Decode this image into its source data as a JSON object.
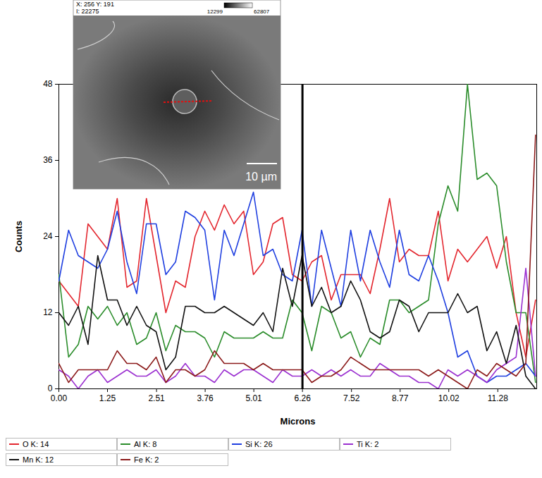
{
  "chart_data": {
    "type": "line",
    "x_label": "Microns",
    "y_label": "Counts",
    "xlim": [
      0,
      12.28
    ],
    "xticks": [
      {
        "value": 0,
        "label": "0.00"
      },
      1.25,
      2.51,
      3.76,
      5.01,
      6.26,
      7.52,
      8.77,
      10.02,
      11.28
    ],
    "ylim": [
      0,
      48
    ],
    "yticks": [
      0,
      12,
      24,
      36,
      48
    ],
    "grid": false,
    "legend": "bottom",
    "cursor_x": 6.26,
    "inset": {
      "position_label": "X: 256 Y: 191",
      "intensity_label": "I: 22275",
      "range_min": "12299",
      "range_max": "62807",
      "scale_bar": "10 µm"
    },
    "x": [
      0,
      0.25,
      0.5,
      0.75,
      1,
      1.25,
      1.5,
      1.75,
      2,
      2.25,
      2.5,
      2.75,
      3,
      3.25,
      3.5,
      3.75,
      4,
      4.25,
      4.5,
      4.75,
      5,
      5.25,
      5.5,
      5.75,
      6,
      6.25,
      6.5,
      6.75,
      7,
      7.25,
      7.5,
      7.75,
      8,
      8.25,
      8.5,
      8.75,
      9,
      9.25,
      9.5,
      9.75,
      10,
      10.25,
      10.5,
      10.75,
      11,
      11.25,
      11.5,
      11.75,
      12,
      12.25
    ],
    "series": [
      {
        "name": "O K: 14",
        "color": "#e3262e",
        "values": [
          17,
          15,
          13,
          26,
          24,
          22,
          30,
          16,
          17,
          30,
          21,
          12,
          17,
          16,
          24,
          28,
          25,
          29,
          26,
          28,
          18,
          20,
          26,
          27,
          18,
          17,
          20,
          21,
          14,
          18,
          18,
          18,
          15,
          22,
          30,
          20,
          22,
          21,
          21,
          28,
          17,
          22,
          20,
          22,
          24,
          19,
          24,
          12,
          5,
          14
        ]
      },
      {
        "name": "Al K: 8",
        "color": "#2a8c2a",
        "values": [
          18,
          5,
          7,
          13,
          11,
          13,
          10,
          12,
          7,
          8,
          12,
          6,
          10,
          9,
          9,
          8,
          5,
          9,
          8,
          8,
          8,
          9,
          8,
          8,
          14,
          12,
          6,
          13,
          12,
          8,
          9,
          5,
          8,
          7,
          14,
          14,
          12,
          13,
          14,
          26,
          32,
          28,
          48,
          33,
          34,
          32,
          20,
          12,
          12,
          1
        ]
      },
      {
        "name": "Si K: 26",
        "color": "#1f3fe0",
        "values": [
          17,
          25,
          21,
          20,
          19,
          22,
          28,
          20,
          15,
          26,
          26,
          18,
          20,
          28,
          27,
          25,
          14,
          25,
          21,
          26,
          31,
          21,
          22,
          18,
          17,
          25,
          13,
          25,
          19,
          13,
          25,
          17,
          25,
          20,
          16,
          25,
          18,
          17,
          21,
          17,
          12,
          5,
          6,
          2,
          1,
          2,
          2,
          3,
          4,
          2
        ]
      },
      {
        "name": "Ti K: 2",
        "color": "#9b30d0",
        "values": [
          3,
          2,
          0,
          2,
          3,
          1,
          2,
          3,
          2,
          2,
          3,
          1,
          2,
          4,
          2,
          2,
          1,
          3,
          2,
          3,
          3,
          2,
          1,
          3,
          2,
          2,
          3,
          2,
          3,
          2,
          3,
          2,
          2,
          4,
          3,
          2,
          2,
          1,
          1,
          0,
          3,
          2,
          3,
          2,
          1,
          3,
          4,
          5,
          19,
          2
        ]
      },
      {
        "name": "Mn K: 12",
        "color": "#111111",
        "values": [
          12,
          10,
          13,
          7,
          21,
          14,
          14,
          10,
          13,
          10,
          9,
          3,
          5,
          13,
          13,
          12,
          12,
          13,
          12,
          11,
          10,
          12,
          9,
          19,
          13,
          21,
          13,
          16,
          12,
          13,
          17,
          14,
          9,
          8,
          9,
          14,
          13,
          9,
          12,
          12,
          12,
          15,
          12,
          13,
          6,
          9,
          4,
          10,
          2,
          0
        ]
      },
      {
        "name": "Fe K: 2",
        "color": "#8b1a1a",
        "values": [
          4,
          1,
          3,
          3,
          3,
          3,
          6,
          4,
          4,
          3,
          5,
          1,
          3,
          3,
          2,
          3,
          6,
          4,
          4,
          4,
          3,
          4,
          3,
          3,
          3,
          3,
          1,
          2,
          2,
          3,
          5,
          4,
          3,
          3,
          3,
          3,
          3,
          3,
          2,
          3,
          2,
          1,
          0,
          3,
          2,
          4,
          3,
          2,
          4,
          40
        ]
      }
    ]
  }
}
